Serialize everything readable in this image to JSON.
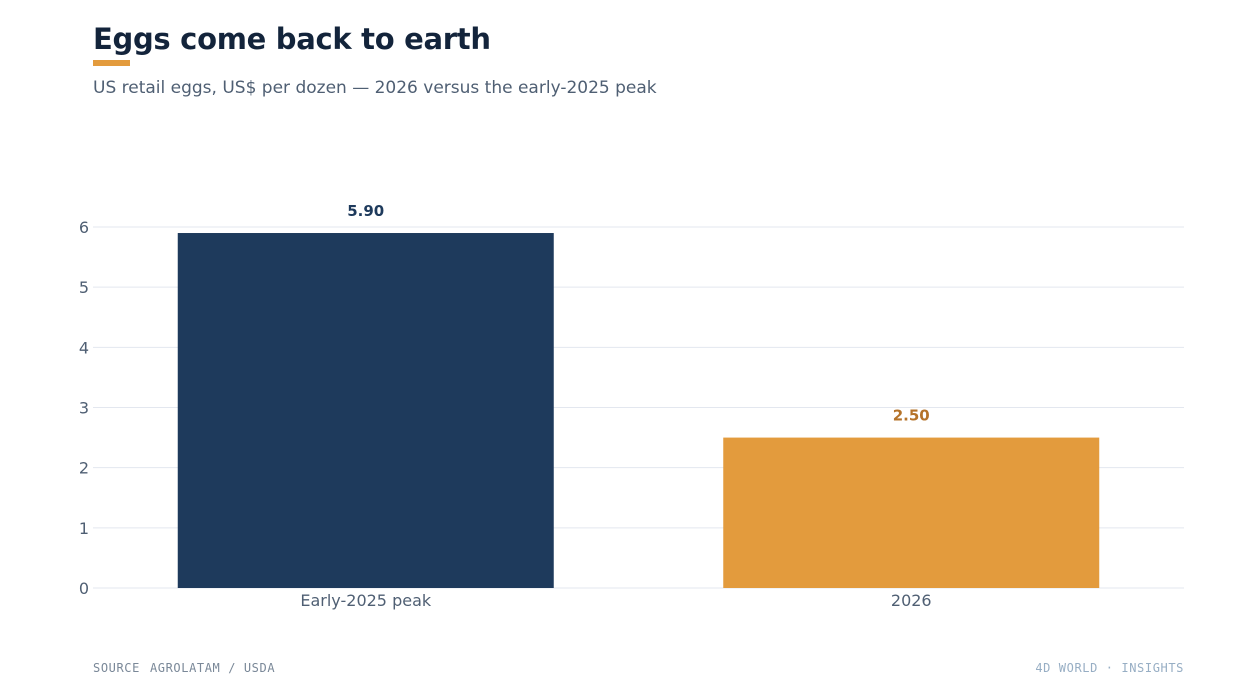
{
  "header": {
    "title": "Eggs come back to earth",
    "subtitle": "US retail eggs, US$ per dozen — 2026 versus the early-2025 peak"
  },
  "footer": {
    "source_label": "SOURCE",
    "source_value": "AGROLATAM / USDA",
    "brand": "4D WORLD · INSIGHTS"
  },
  "colors": {
    "accent": "#e39b3d",
    "navy": "#1e3a5c",
    "orange": "#e39b3d",
    "orange_label": "#b5732a",
    "grid": "#e3e7ef",
    "axis_text": "#4f5f73"
  },
  "chart_data": {
    "type": "bar",
    "categories": [
      "Early-2025 peak",
      "2026"
    ],
    "values": [
      5.9,
      2.5
    ],
    "value_labels": [
      "5.90",
      "2.50"
    ],
    "bar_colors": [
      "#1e3a5c",
      "#e39b3d"
    ],
    "label_colors": [
      "#1e3a5c",
      "#b5732a"
    ],
    "ylim": [
      0,
      6
    ],
    "yticks": [
      0,
      1,
      2,
      3,
      4,
      5,
      6
    ],
    "grid": true
  }
}
